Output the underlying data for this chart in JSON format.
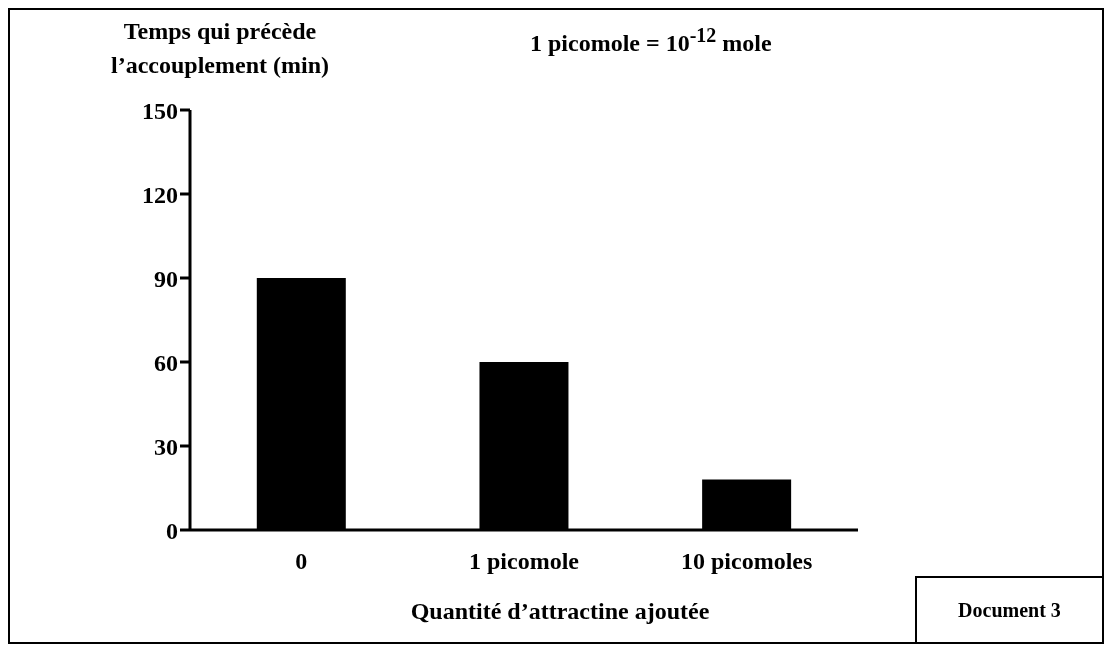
{
  "chart_data": {
    "type": "bar",
    "ylabel": "Temps qui précède l’accouplement (min)",
    "xlabel": "Quantité d’attractine ajoutée",
    "categories": [
      "0",
      "1 picomole",
      "10 picomoles"
    ],
    "values": [
      90,
      60,
      18
    ],
    "color": "#000000",
    "ylim": [
      0,
      150
    ],
    "yticks": [
      0,
      30,
      60,
      90,
      120,
      150
    ],
    "grid": false,
    "annotations": [
      "1 picomole = 10$^{-12}$ mole",
      "Document 3"
    ]
  }
}
